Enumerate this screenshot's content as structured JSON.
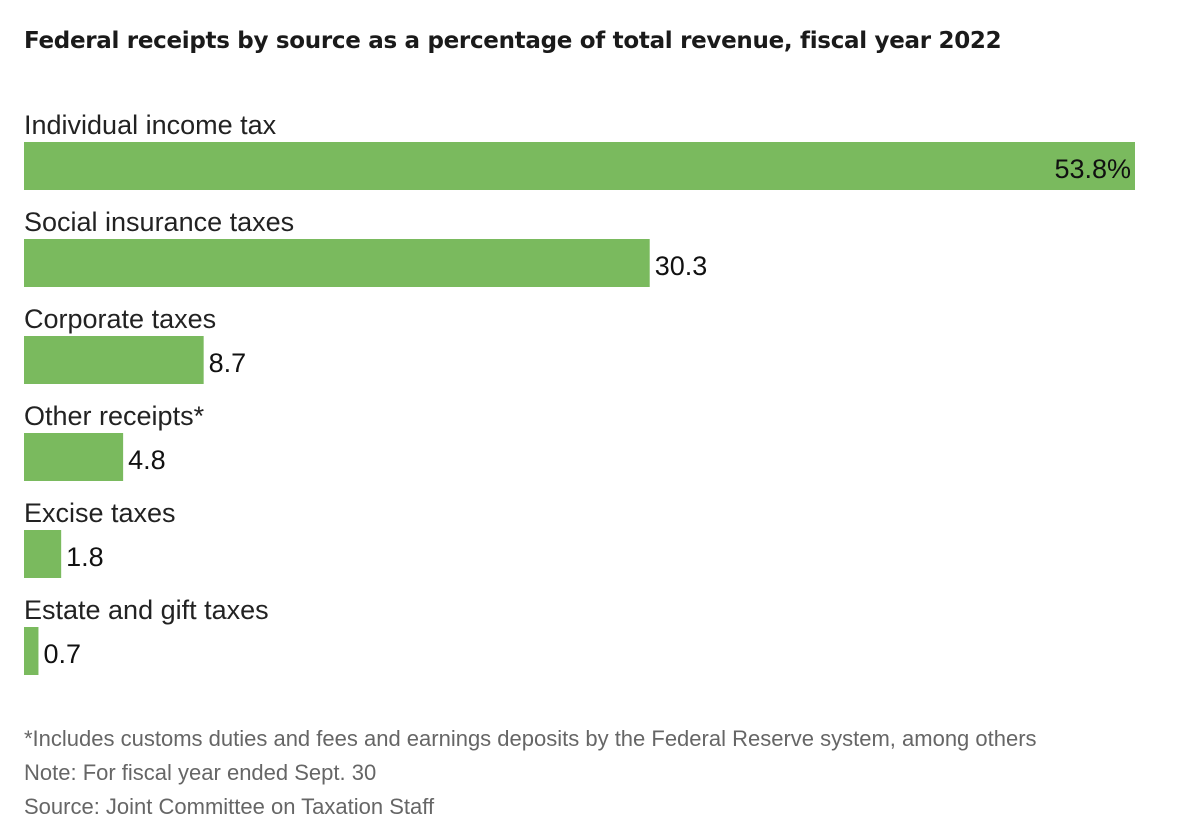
{
  "chart_data": {
    "type": "bar",
    "orientation": "horizontal",
    "title": "Federal receipts by source as a percentage of total revenue, fiscal year 2022",
    "categories": [
      "Individual income tax",
      "Social insurance taxes",
      "Corporate taxes",
      "Other receipts*",
      "Excise taxes",
      "Estate and gift taxes"
    ],
    "values": [
      53.8,
      30.3,
      8.7,
      4.8,
      1.8,
      0.7
    ],
    "value_labels": [
      "53.8%",
      "30.3",
      "8.7",
      "4.8",
      "1.8",
      "0.7"
    ],
    "xlim": [
      0,
      53.8
    ],
    "bar_color": "#7aba5e",
    "grid": false,
    "legend": "none"
  },
  "notes": {
    "footnote": "*Includes customs duties and fees and earnings deposits by the Federal Reserve system, among others",
    "note": "Note: For fiscal year ended Sept. 30",
    "source": "Source: Joint Committee on Taxation Staff"
  }
}
